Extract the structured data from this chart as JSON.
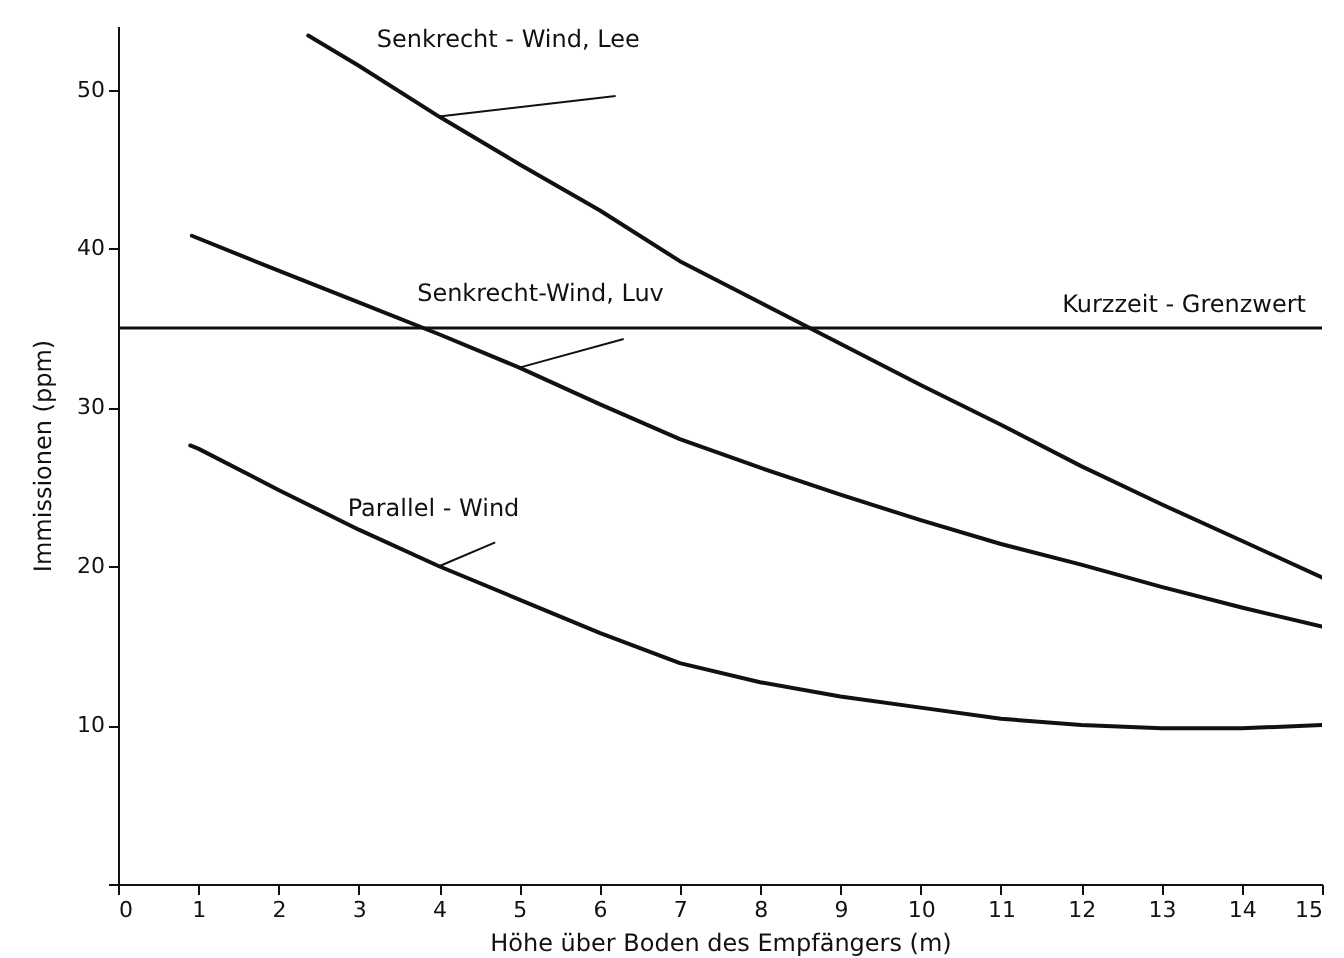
{
  "chart_data": {
    "type": "line",
    "xlabel": "Höhe über Boden des Empfängers   (m)",
    "ylabel": "Immissionen  (ppm)",
    "xlim": [
      0,
      15
    ],
    "ylim": [
      0,
      54
    ],
    "xticks": [
      0,
      1,
      2,
      3,
      4,
      5,
      6,
      7,
      8,
      9,
      10,
      11,
      12,
      13,
      14,
      15
    ],
    "yticks": [
      {
        "value": 0,
        "label": null
      },
      10,
      20,
      30,
      40,
      50
    ],
    "grid": false,
    "line_style": "solid",
    "series": [
      {
        "name": "Senkrecht - Wind,  Lee",
        "color": "#111111",
        "x": [
          2.37,
          3,
          4,
          5,
          6,
          7,
          8,
          9,
          10,
          11,
          12,
          13,
          14,
          15
        ],
        "values": [
          53.4,
          51.5,
          48.3,
          45.3,
          42.4,
          39.2,
          36.6,
          34.0,
          31.4,
          28.9,
          26.3,
          23.9,
          21.6,
          19.3
        ]
      },
      {
        "name": "Senkrecht-Wind,  Luv",
        "color": "#111111",
        "x": [
          0.92,
          2,
          3,
          4,
          5,
          6,
          7,
          8,
          9,
          10,
          11,
          12,
          13,
          14,
          15
        ],
        "values": [
          40.8,
          38.6,
          36.6,
          34.6,
          32.5,
          30.2,
          28.0,
          26.2,
          24.5,
          22.9,
          21.4,
          20.1,
          18.7,
          17.4,
          16.2
        ]
      },
      {
        "name": "Parallel - Wind",
        "color": "#111111",
        "x": [
          0.9,
          1,
          2,
          3,
          4,
          5,
          6,
          7,
          8,
          9,
          10,
          11,
          12,
          13,
          14,
          15
        ],
        "values": [
          27.6,
          27.4,
          24.8,
          22.3,
          20.0,
          17.9,
          15.8,
          13.9,
          12.7,
          11.8,
          11.1,
          10.4,
          10.0,
          9.8,
          9.8,
          10.0
        ]
      }
    ],
    "ref_lines": [
      {
        "axis": "y",
        "value": 35,
        "label": "Kurzzeit - Grenzwert",
        "color": "#111111"
      }
    ]
  }
}
